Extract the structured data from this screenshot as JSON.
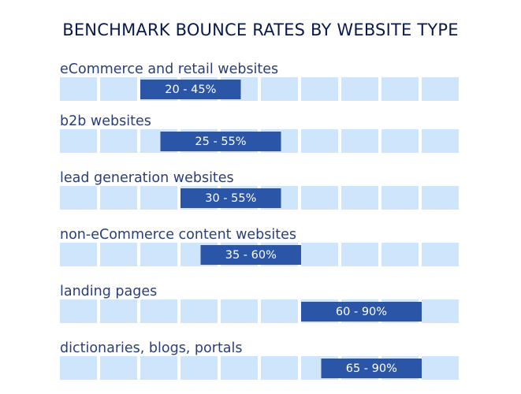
{
  "title": "BENCHMARK BOUNCE RATES BY WEBSITE TYPE",
  "colors": {
    "cell": "#cfe5fb",
    "bar": "#2b56a8",
    "label": "#2a3f7a",
    "title": "#0a1a4a"
  },
  "chart_data": {
    "type": "bar",
    "title": "BENCHMARK BOUNCE RATES BY WEBSITE TYPE",
    "orientation": "horizontal-range",
    "xlim": [
      0,
      100
    ],
    "grid": "10 columns, one per 10%",
    "categories": [
      "eCommerce and retail websites",
      "b2b websites",
      "lead generation websites",
      "non-eCommerce content websites",
      "landing pages",
      "dictionaries, blogs, portals"
    ],
    "ranges": [
      {
        "low": 20,
        "high": 45,
        "label": "20 - 45%"
      },
      {
        "low": 25,
        "high": 55,
        "label": "25 - 55%"
      },
      {
        "low": 30,
        "high": 55,
        "label": "30 - 55%"
      },
      {
        "low": 35,
        "high": 60,
        "label": "35 - 60%"
      },
      {
        "low": 60,
        "high": 90,
        "label": "60 - 90%"
      },
      {
        "low": 65,
        "high": 90,
        "label": "65 - 90%"
      }
    ]
  }
}
